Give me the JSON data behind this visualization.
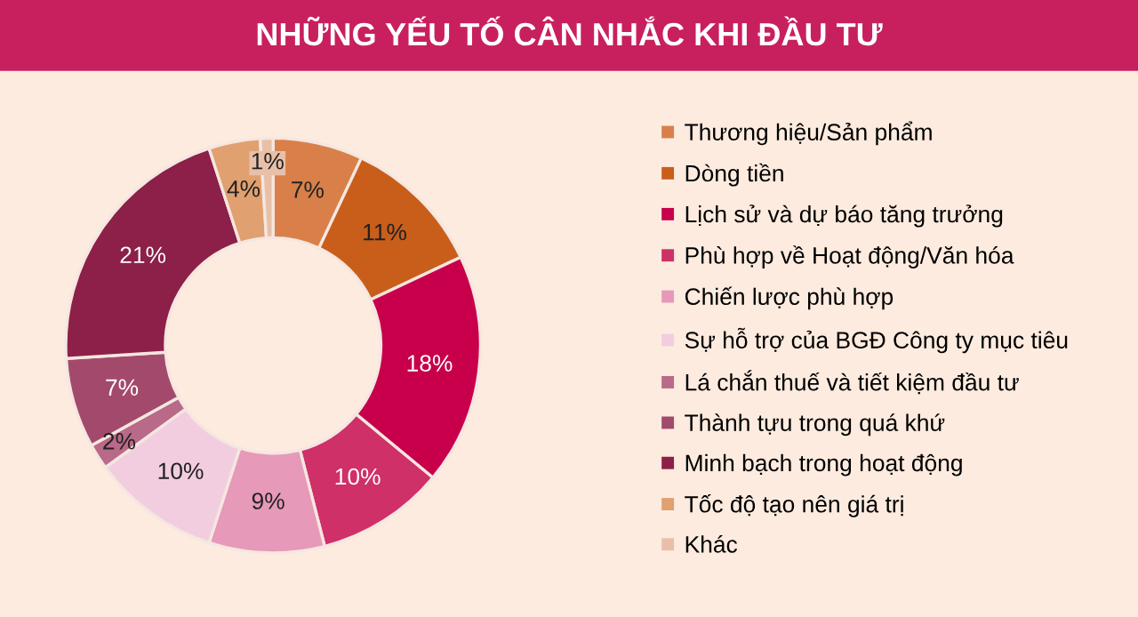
{
  "chart_data": {
    "type": "donut",
    "title": "NHỮNG YẾU TỐ CÂN NHẮC KHI ĐẦU TƯ",
    "categories": [
      "Thương hiệu/Sản phẩm",
      "Dòng tiền",
      "Lịch sử và dự báo tăng trưởng",
      "Phù hợp về Hoạt động/Văn hóa",
      "Chiến lược phù hợp",
      "Sự hỗ trợ của BGĐ Công ty mục tiêu",
      "Lá chắn thuế và tiết kiệm đầu tư",
      "Thành tựu trong quá khứ",
      "Minh bạch trong hoạt động",
      "Tốc độ tạo nên giá trị",
      "Khác"
    ],
    "values": [
      7,
      11,
      18,
      10,
      9,
      10,
      2,
      7,
      21,
      4,
      1
    ],
    "colors": [
      "#d9804a",
      "#c95e1a",
      "#c8004c",
      "#cf3068",
      "#e699b8",
      "#f2cde0",
      "#b86a88",
      "#a34a6c",
      "#8c2048",
      "#e0a070",
      "#e8c0a8"
    ],
    "value_labels": [
      "7%",
      "11%",
      "18%",
      "10%",
      "9%",
      "10%",
      "2%",
      "7%",
      "21%",
      "4%",
      "1%"
    ],
    "legend": "right"
  }
}
